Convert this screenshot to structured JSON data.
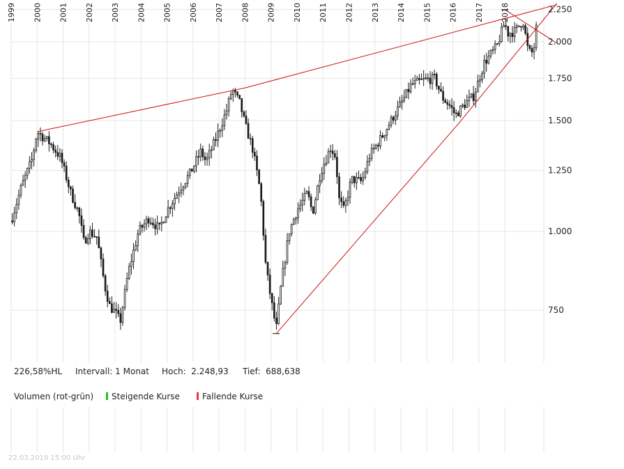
{
  "info": {
    "change": "226,58%HL",
    "interval_label": "Intervall:",
    "interval_value": "1 Monat",
    "high_label": "Hoch:",
    "high_value": "2.248,93",
    "low_label": "Tief:",
    "low_value": "688,638"
  },
  "legend": {
    "volume_label": "Volumen (rot-grün)",
    "rising_label": "Steigende Kurse",
    "falling_label": "Fallende Kurse",
    "rising_color": "#22bb22",
    "falling_color": "#ee3344"
  },
  "timestamp": "22.03.2019 15:00 Uhr",
  "colors": {
    "candle": "#1a1a1a",
    "trendline": "#cc1111",
    "grid": "#e6e6e6"
  },
  "chart_data": {
    "type": "candlestick",
    "scale": "log",
    "ylim": [
      620,
      2300
    ],
    "yticks": [
      {
        "value": 750,
        "label": "750"
      },
      {
        "value": 1000,
        "label": "1.000"
      },
      {
        "value": 1250,
        "label": "1.250"
      },
      {
        "value": 1500,
        "label": "1.500"
      },
      {
        "value": 1750,
        "label": "1.750"
      },
      {
        "value": 2000,
        "label": "2.000"
      },
      {
        "value": 2250,
        "label": "2.250"
      }
    ],
    "xlim": [
      1999.0,
      2019.5
    ],
    "years": [
      "1999",
      "2000",
      "2001",
      "2002",
      "2003",
      "2004",
      "2005",
      "2006",
      "2007",
      "2008",
      "2009",
      "2010",
      "2011",
      "2012",
      "2013",
      "2014",
      "2015",
      "2016",
      "2017",
      "2018"
    ],
    "anchors": [
      [
        1999.0,
        1040
      ],
      [
        1999.4,
        1180
      ],
      [
        1999.8,
        1300
      ],
      [
        2000.0,
        1440
      ],
      [
        2000.5,
        1380
      ],
      [
        2000.9,
        1310
      ],
      [
        2001.3,
        1150
      ],
      [
        2001.6,
        1070
      ],
      [
        2001.8,
        960
      ],
      [
        2002.0,
        1000
      ],
      [
        2002.3,
        980
      ],
      [
        2002.6,
        820
      ],
      [
        2002.8,
        760
      ],
      [
        2003.0,
        745
      ],
      [
        2003.2,
        720
      ],
      [
        2003.5,
        860
      ],
      [
        2003.9,
        1000
      ],
      [
        2004.3,
        1050
      ],
      [
        2004.7,
        1010
      ],
      [
        2005.0,
        1080
      ],
      [
        2005.5,
        1170
      ],
      [
        2005.9,
        1240
      ],
      [
        2006.3,
        1340
      ],
      [
        2006.5,
        1290
      ],
      [
        2006.9,
        1410
      ],
      [
        2007.3,
        1560
      ],
      [
        2007.5,
        1680
      ],
      [
        2007.8,
        1600
      ],
      [
        2008.0,
        1480
      ],
      [
        2008.3,
        1350
      ],
      [
        2008.6,
        1150
      ],
      [
        2008.8,
        880
      ],
      [
        2009.0,
        780
      ],
      [
        2009.2,
        700
      ],
      [
        2009.4,
        830
      ],
      [
        2009.7,
        1000
      ],
      [
        2010.0,
        1080
      ],
      [
        2010.4,
        1150
      ],
      [
        2010.6,
        1070
      ],
      [
        2010.9,
        1240
      ],
      [
        2011.3,
        1360
      ],
      [
        2011.5,
        1310
      ],
      [
        2011.6,
        1130
      ],
      [
        2011.8,
        1080
      ],
      [
        2012.1,
        1210
      ],
      [
        2012.5,
        1200
      ],
      [
        2012.8,
        1320
      ],
      [
        2013.3,
        1420
      ],
      [
        2013.7,
        1520
      ],
      [
        2014.1,
        1620
      ],
      [
        2014.4,
        1710
      ],
      [
        2014.9,
        1740
      ],
      [
        2015.3,
        1750
      ],
      [
        2015.6,
        1630
      ],
      [
        2015.9,
        1580
      ],
      [
        2016.1,
        1530
      ],
      [
        2016.5,
        1600
      ],
      [
        2016.8,
        1640
      ],
      [
        2017.2,
        1850
      ],
      [
        2017.7,
        1970
      ],
      [
        2018.0,
        2150
      ],
      [
        2018.1,
        2060
      ],
      [
        2018.4,
        2080
      ],
      [
        2018.7,
        2160
      ],
      [
        2018.9,
        1930
      ],
      [
        2019.1,
        1920
      ],
      [
        2019.2,
        2100
      ]
    ],
    "trendlines": [
      {
        "name": "upper-resistance",
        "points": [
          [
            2000.0,
            1440
          ],
          [
            2008.0,
            1690
          ],
          [
            2020.0,
            2290
          ]
        ]
      },
      {
        "name": "lower-support",
        "points": [
          [
            2009.2,
            688.638
          ],
          [
            2016.2,
            1480
          ],
          [
            2020.0,
            2300
          ]
        ]
      },
      {
        "name": "short-downtrend",
        "points": [
          [
            2018.0,
            2248.93
          ],
          [
            2020.0,
            1990
          ]
        ]
      }
    ]
  }
}
